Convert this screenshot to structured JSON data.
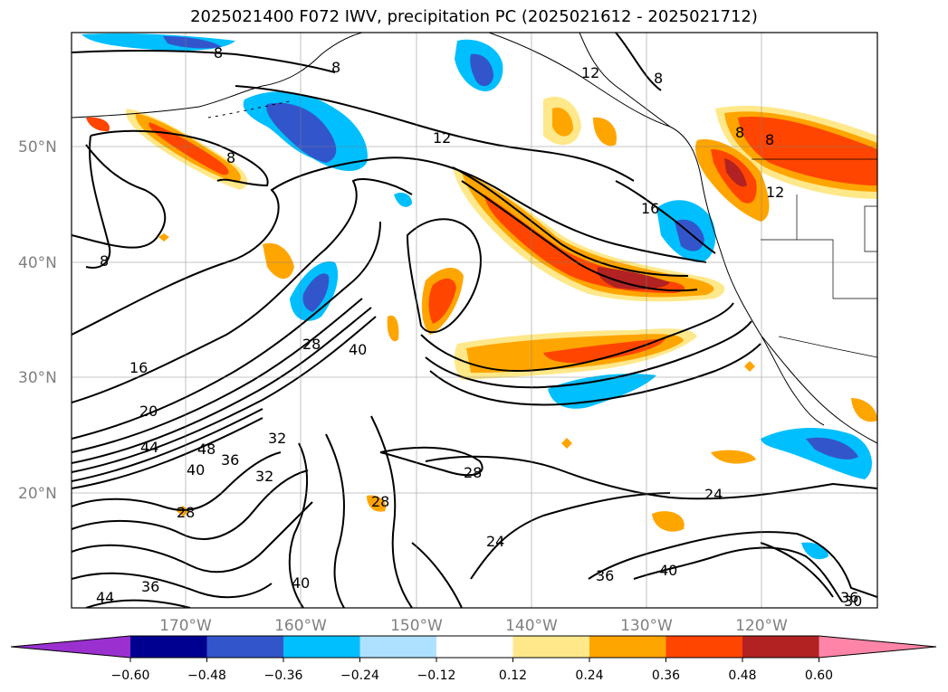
{
  "title": "2025021400 F072 IWV, precipitation PC (2025021612 - 2025021712)",
  "map": {
    "lat_ticks": [
      "50°N",
      "40°N",
      "30°N",
      "20°N"
    ],
    "lon_ticks": [
      "170°W",
      "160°W",
      "150°W",
      "140°W",
      "130°W",
      "120°W"
    ],
    "grid": true,
    "contour_labels": [
      "8",
      "8",
      "8",
      "8",
      "12",
      "12",
      "8",
      "8",
      "12",
      "16",
      "8",
      "16",
      "20",
      "44",
      "48",
      "40",
      "36",
      "32",
      "28",
      "40",
      "28",
      "32",
      "28",
      "28",
      "24",
      "24",
      "36",
      "40",
      "36",
      "30",
      "36",
      "44",
      "40"
    ]
  },
  "colorbar": {
    "orientation": "horizontal",
    "extend": "both",
    "tick_labels": [
      "−0.60",
      "−0.48",
      "−0.36",
      "−0.24",
      "−0.12",
      "0.12",
      "0.24",
      "0.36",
      "0.48",
      "0.60"
    ],
    "colors": [
      "#9b30d0",
      "#000090",
      "#3355cc",
      "#00bfff",
      "#aee0ff",
      "#ffffff",
      "#ffe88a",
      "#ffa500",
      "#ff4500",
      "#b22222",
      "#ff85a8"
    ]
  }
}
